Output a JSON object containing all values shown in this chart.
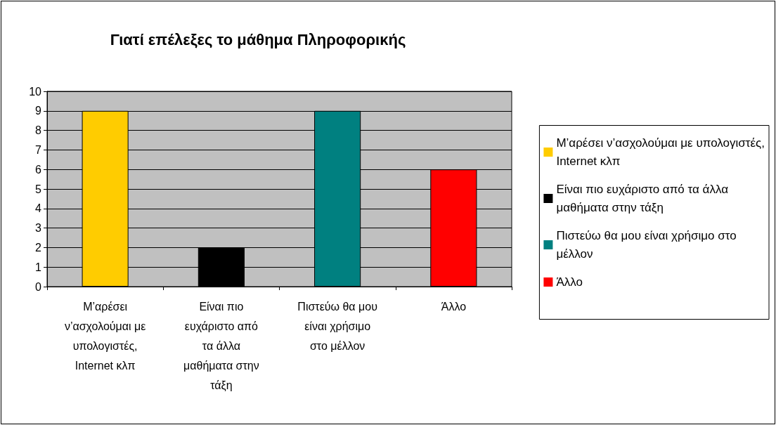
{
  "chart_data": {
    "type": "bar",
    "title": "Γιατί επέλεξες το μάθημα Πληροφορικής",
    "categories": [
      "Μ’αρέσει ν’ασχολούμαι με υπολογιστές, Internet κλπ",
      "Είναι πιο ευχάριστο από τα άλλα μαθήματα στην τάξη",
      "Πιστεύω θα μου είναι χρήσιμο στο μέλλον",
      "Άλλο"
    ],
    "series": [
      {
        "name": "Μ’αρέσει ν’ασχολούμαι με υπολογιστές, Internet κλπ",
        "color": "#ffcc00",
        "values": [
          9,
          null,
          null,
          null
        ]
      },
      {
        "name": "Είναι πιο ευχάριστο από τα άλλα μαθήματα στην τάξη",
        "color": "#000000",
        "values": [
          null,
          2,
          null,
          null
        ]
      },
      {
        "name": "Πιστεύω θα μου είναι χρήσιμο στο μέλλον",
        "color": "#008080",
        "values": [
          null,
          null,
          9,
          null
        ]
      },
      {
        "name": "Άλλο",
        "color": "#ff0000",
        "values": [
          null,
          null,
          null,
          6
        ]
      }
    ],
    "stacked": true,
    "ylim": [
      0,
      10
    ],
    "yticks": [
      0,
      1,
      2,
      3,
      4,
      5,
      6,
      7,
      8,
      9,
      10
    ],
    "grid": "y",
    "legend": "right"
  }
}
